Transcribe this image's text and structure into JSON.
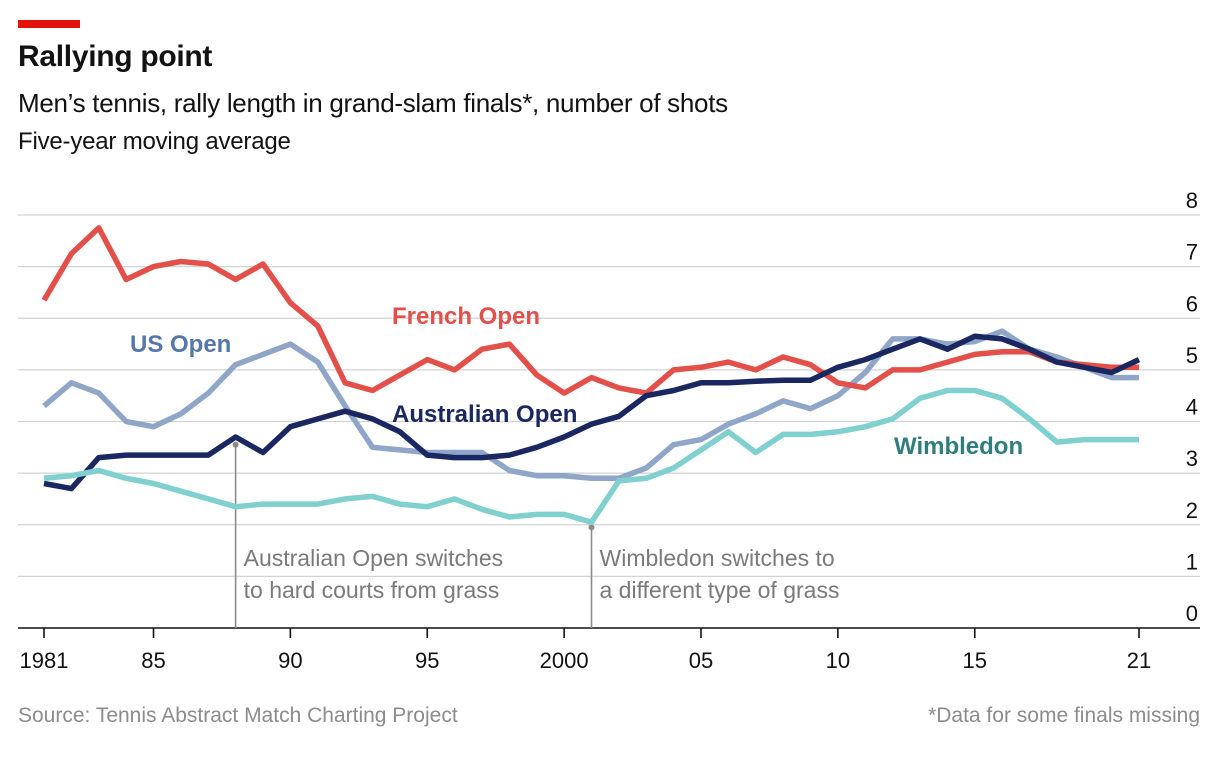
{
  "header": {
    "title": "Rallying point",
    "subtitle": "Men’s tennis, rally length in grand-slam finals*, number of shots",
    "note": "Five-year moving average"
  },
  "footer": {
    "source": "Source: Tennis Abstract Match Charting Project",
    "footnote": "*Data for some finals missing"
  },
  "colors": {
    "french_open": "#e3504a",
    "us_open": "#8fa6c8",
    "australian_open": "#1b2760",
    "wimbledon": "#7fd0cf",
    "accent": "#e3120b"
  },
  "chart_data": {
    "type": "line",
    "title": "Rallying point",
    "ylabel": "number of shots",
    "ylim": [
      0,
      8
    ],
    "xlim": [
      1981,
      2021
    ],
    "y_ticks": [
      "0",
      "1",
      "2",
      "3",
      "4",
      "5",
      "6",
      "7",
      "8"
    ],
    "x_ticks": [
      {
        "year": 1981,
        "label": "1981"
      },
      {
        "year": 1985,
        "label": "85"
      },
      {
        "year": 1990,
        "label": "90"
      },
      {
        "year": 1995,
        "label": "95"
      },
      {
        "year": 2000,
        "label": "2000"
      },
      {
        "year": 2005,
        "label": "05"
      },
      {
        "year": 2010,
        "label": "10"
      },
      {
        "year": 2015,
        "label": "15"
      },
      {
        "year": 2021,
        "label": "21"
      }
    ],
    "grid": true,
    "x": [
      1981,
      1982,
      1983,
      1984,
      1985,
      1986,
      1987,
      1988,
      1989,
      1990,
      1991,
      1992,
      1993,
      1994,
      1995,
      1996,
      1997,
      1998,
      1999,
      2000,
      2001,
      2002,
      2003,
      2004,
      2005,
      2006,
      2007,
      2008,
      2009,
      2010,
      2011,
      2012,
      2013,
      2014,
      2015,
      2016,
      2017,
      2018,
      2019,
      2020,
      2021
    ],
    "series": [
      {
        "name": "US Open",
        "key": "us_open",
        "values": [
          4.3,
          4.75,
          4.55,
          4.0,
          3.9,
          4.15,
          4.55,
          5.1,
          5.3,
          5.5,
          5.15,
          4.3,
          3.5,
          3.45,
          3.4,
          3.4,
          3.4,
          3.05,
          2.95,
          2.95,
          2.9,
          2.9,
          3.1,
          3.55,
          3.65,
          3.95,
          4.15,
          4.4,
          4.25,
          4.5,
          4.95,
          5.6,
          5.6,
          5.5,
          5.55,
          5.75,
          5.4,
          5.25,
          5.05,
          4.85,
          4.85
        ]
      },
      {
        "name": "French Open",
        "key": "french_open",
        "values": [
          6.35,
          7.25,
          7.75,
          6.75,
          7.0,
          7.1,
          7.05,
          6.75,
          7.05,
          6.3,
          5.85,
          4.75,
          4.6,
          4.9,
          5.2,
          5.0,
          5.4,
          5.5,
          4.9,
          4.55,
          4.85,
          4.65,
          4.55,
          5.0,
          5.05,
          5.15,
          5.0,
          5.25,
          5.1,
          4.75,
          4.65,
          5.0,
          5.0,
          5.15,
          5.3,
          5.35,
          5.35,
          5.15,
          5.1,
          5.05,
          5.05
        ]
      },
      {
        "name": "Australian Open",
        "key": "australian_open",
        "values": [
          2.8,
          2.7,
          3.3,
          3.35,
          3.35,
          3.35,
          3.35,
          3.7,
          3.4,
          3.9,
          4.05,
          4.2,
          4.05,
          3.8,
          3.35,
          3.3,
          3.3,
          3.35,
          3.5,
          3.7,
          3.95,
          4.1,
          4.5,
          4.6,
          4.75,
          4.75,
          4.78,
          4.8,
          4.8,
          5.05,
          5.2,
          5.4,
          5.6,
          5.4,
          5.65,
          5.6,
          5.4,
          5.15,
          5.05,
          4.95,
          5.2
        ]
      },
      {
        "name": "Wimbledon",
        "key": "wimbledon",
        "values": [
          2.9,
          2.95,
          3.05,
          2.9,
          2.8,
          2.65,
          2.5,
          2.35,
          2.4,
          2.4,
          2.4,
          2.5,
          2.55,
          2.4,
          2.35,
          2.5,
          2.3,
          2.15,
          2.2,
          2.2,
          2.05,
          2.85,
          2.9,
          3.1,
          3.45,
          3.8,
          3.4,
          3.75,
          3.75,
          3.8,
          3.9,
          4.05,
          4.45,
          4.6,
          4.6,
          4.45,
          4.05,
          3.6,
          3.65,
          3.65,
          3.65
        ]
      }
    ],
    "annotations": [
      {
        "year": 1988,
        "y": 3.55,
        "lines": [
          "Australian Open switches",
          "to hard courts from grass"
        ]
      },
      {
        "year": 2001,
        "y": 1.95,
        "lines": [
          "Wimbledon switches to",
          "a different type of grass"
        ]
      }
    ]
  }
}
